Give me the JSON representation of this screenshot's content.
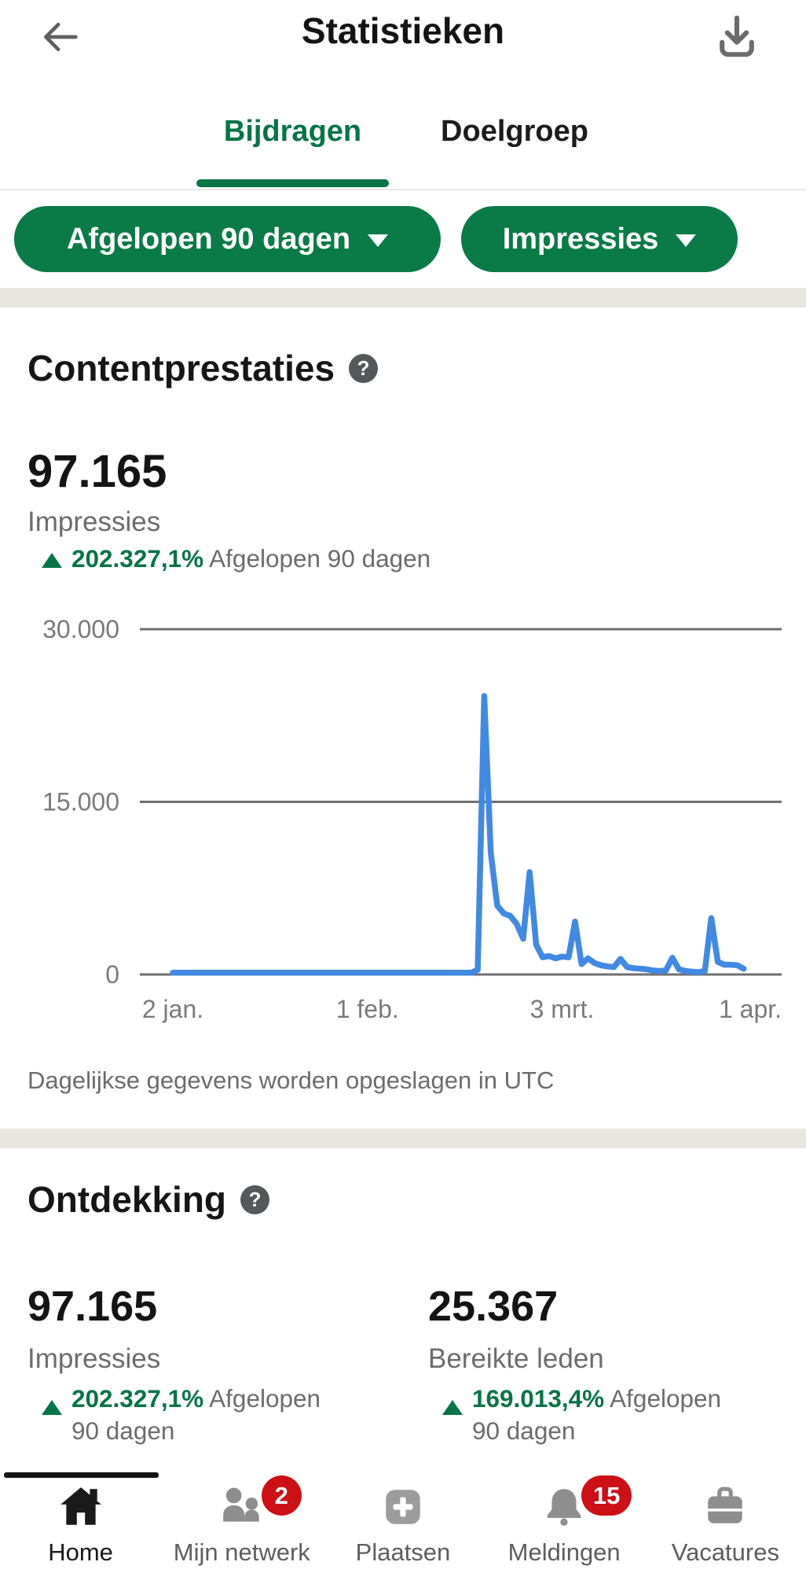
{
  "header": {
    "title": "Statistieken"
  },
  "tabs": [
    {
      "label": "Bijdragen",
      "active": true
    },
    {
      "label": "Doelgroep",
      "active": false
    }
  ],
  "filters": [
    {
      "label": "Afgelopen 90 dagen"
    },
    {
      "label": "Impressies"
    }
  ],
  "icons": {
    "help_glyph": "?"
  },
  "content_performance": {
    "title": "Contentprestaties",
    "value": "97.165",
    "metric": "Impressies",
    "change": "202.327,1%",
    "period": "Afgelopen 90 dagen"
  },
  "chart_data": {
    "type": "line",
    "series": [
      {
        "name": "Impressies",
        "points": [
          [
            0,
            150
          ],
          [
            46,
            150
          ],
          [
            47,
            400
          ],
          [
            48,
            24200
          ],
          [
            49,
            10600
          ],
          [
            50,
            6000
          ],
          [
            51,
            5300
          ],
          [
            52,
            5100
          ],
          [
            53,
            4400
          ],
          [
            54,
            3100
          ],
          [
            55,
            8900
          ],
          [
            56,
            2600
          ],
          [
            57,
            1500
          ],
          [
            58,
            1600
          ],
          [
            59,
            1400
          ],
          [
            60,
            1550
          ],
          [
            61,
            1500
          ],
          [
            62,
            4600
          ],
          [
            63,
            900
          ],
          [
            64,
            1400
          ],
          [
            65,
            1000
          ],
          [
            66,
            800
          ],
          [
            67,
            700
          ],
          [
            68,
            650
          ],
          [
            69,
            1350
          ],
          [
            70,
            650
          ],
          [
            71,
            550
          ],
          [
            72,
            500
          ],
          [
            73,
            450
          ],
          [
            74,
            350
          ],
          [
            75,
            300
          ],
          [
            76,
            350
          ],
          [
            77,
            1450
          ],
          [
            78,
            450
          ],
          [
            79,
            300
          ],
          [
            80,
            250
          ],
          [
            81,
            200
          ],
          [
            82,
            300
          ],
          [
            83,
            4900
          ],
          [
            84,
            1100
          ],
          [
            85,
            850
          ],
          [
            86,
            850
          ],
          [
            87,
            800
          ],
          [
            88,
            500
          ]
        ]
      }
    ],
    "x_axis": {
      "unit": "day-index from 2 jan.",
      "tick_days": [
        0,
        30,
        60,
        89
      ],
      "tick_labels": [
        "2 jan.",
        "1 feb.",
        "3 mrt.",
        "1 apr."
      ]
    },
    "y_axis": {
      "range": [
        0,
        30000
      ],
      "ticks": [
        0,
        15000,
        30000
      ],
      "tick_labels": [
        "0",
        "15.000",
        "30.000"
      ]
    },
    "grid": "horizontal",
    "legend": "none",
    "line_color": "#4189e3",
    "grid_color": "#6f6f6f",
    "tick_text_color": "#7a7a7a"
  },
  "footnote": "Dagelijkse gegevens worden opgeslagen in UTC",
  "discovery": {
    "title": "Ontdekking",
    "stats": [
      {
        "value": "97.165",
        "label": "Impressies",
        "change": "202.327,1%",
        "period": "Afgelopen 90 dagen"
      },
      {
        "value": "25.367",
        "label": "Bereikte leden",
        "change": "169.013,4%",
        "period": "Afgelopen 90 dagen"
      }
    ]
  },
  "nav": {
    "items": [
      {
        "label": "Home",
        "icon": "home-icon",
        "active": true
      },
      {
        "label": "Mijn netwerk",
        "icon": "people-icon",
        "badge": "2"
      },
      {
        "label": "Plaatsen",
        "icon": "plus-square-icon"
      },
      {
        "label": "Meldingen",
        "icon": "bell-icon",
        "badge": "15"
      },
      {
        "label": "Vacatures",
        "icon": "briefcase-icon"
      }
    ],
    "badge_color": "#cc1016"
  },
  "colors": {
    "brand_green": "#077448",
    "pill_green": "#0a7a46",
    "chart_blue": "#4189e3",
    "badge_red": "#cc1016",
    "divider_band": "#e9e6e0",
    "muted_text": "#6c6c6c"
  }
}
